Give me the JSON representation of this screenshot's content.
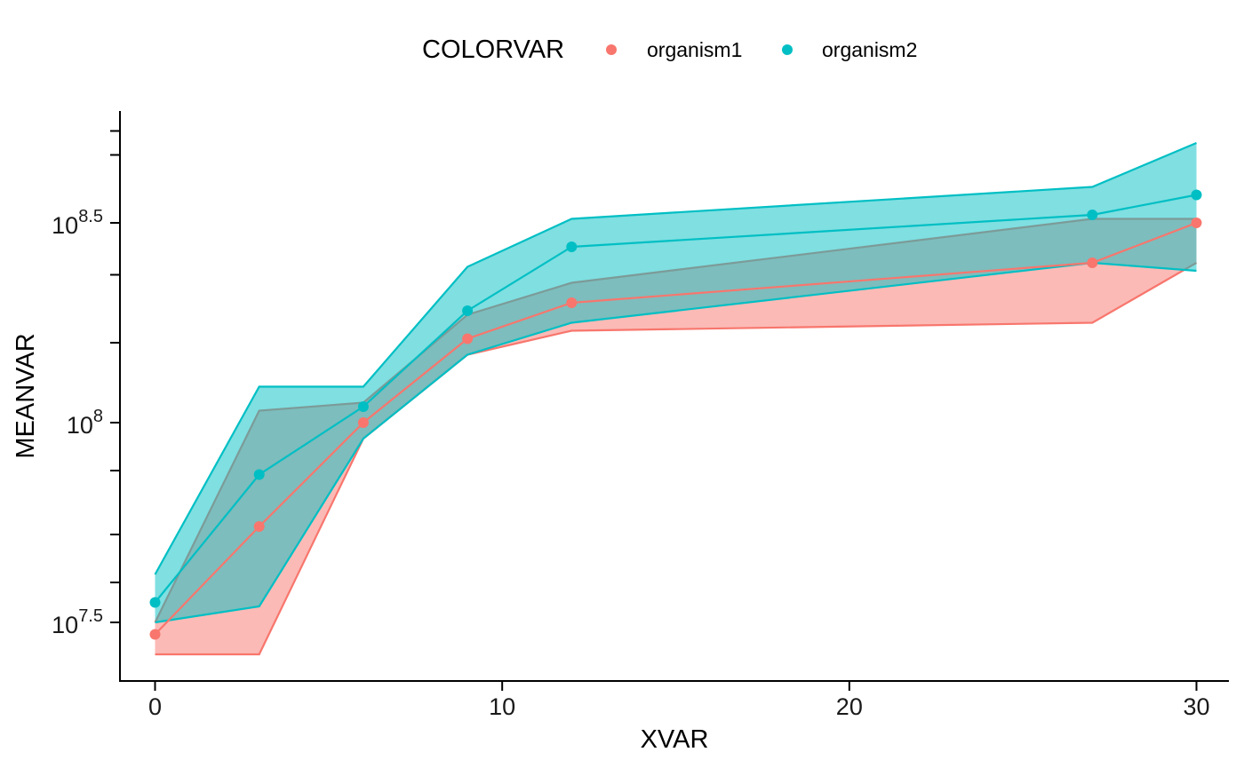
{
  "chart_data": {
    "type": "line",
    "xlabel": "XVAR",
    "ylabel": "MEANVAR",
    "y_scale": "log10",
    "xlim": [
      -1,
      31
    ],
    "ylim_log10": [
      7.43,
      8.75
    ],
    "x_ticks": [
      0,
      10,
      20,
      30
    ],
    "x_tick_labels": [
      "0",
      "10",
      "20",
      "30"
    ],
    "y_major_ticks_log10": [
      7.5,
      8,
      8.5
    ],
    "y_tick_labels": [
      {
        "base": "10",
        "exp": "7.5"
      },
      {
        "base": "10",
        "exp": "8"
      },
      {
        "base": "10",
        "exp": "8.5"
      }
    ],
    "y_minor_ticks_log10": [
      7.6,
      7.72,
      7.88,
      8.2,
      8.37,
      8.67,
      8.73
    ],
    "grid": false,
    "legend": {
      "title": "COLORVAR",
      "position": "top"
    },
    "x": [
      0,
      3,
      6,
      9,
      12,
      27,
      30
    ],
    "series": [
      {
        "name": "organism1",
        "color": "#F8766D",
        "ribbon_alpha": 0.5,
        "mean_log10": [
          7.47,
          7.74,
          8.0,
          8.21,
          8.3,
          8.4,
          8.5
        ],
        "lower_log10": [
          7.42,
          7.42,
          7.96,
          8.17,
          8.23,
          8.25,
          8.4
        ],
        "upper_log10": [
          7.5,
          8.03,
          8.05,
          8.27,
          8.35,
          8.51,
          8.51
        ]
      },
      {
        "name": "organism2",
        "color": "#00BFC4",
        "ribbon_alpha": 0.5,
        "mean_log10": [
          7.55,
          7.87,
          8.04,
          8.28,
          8.44,
          8.52,
          8.57
        ],
        "lower_log10": [
          7.5,
          7.54,
          7.96,
          8.17,
          8.25,
          8.4,
          8.38
        ],
        "upper_log10": [
          7.62,
          8.09,
          8.09,
          8.39,
          8.51,
          8.59,
          8.7
        ]
      }
    ]
  }
}
